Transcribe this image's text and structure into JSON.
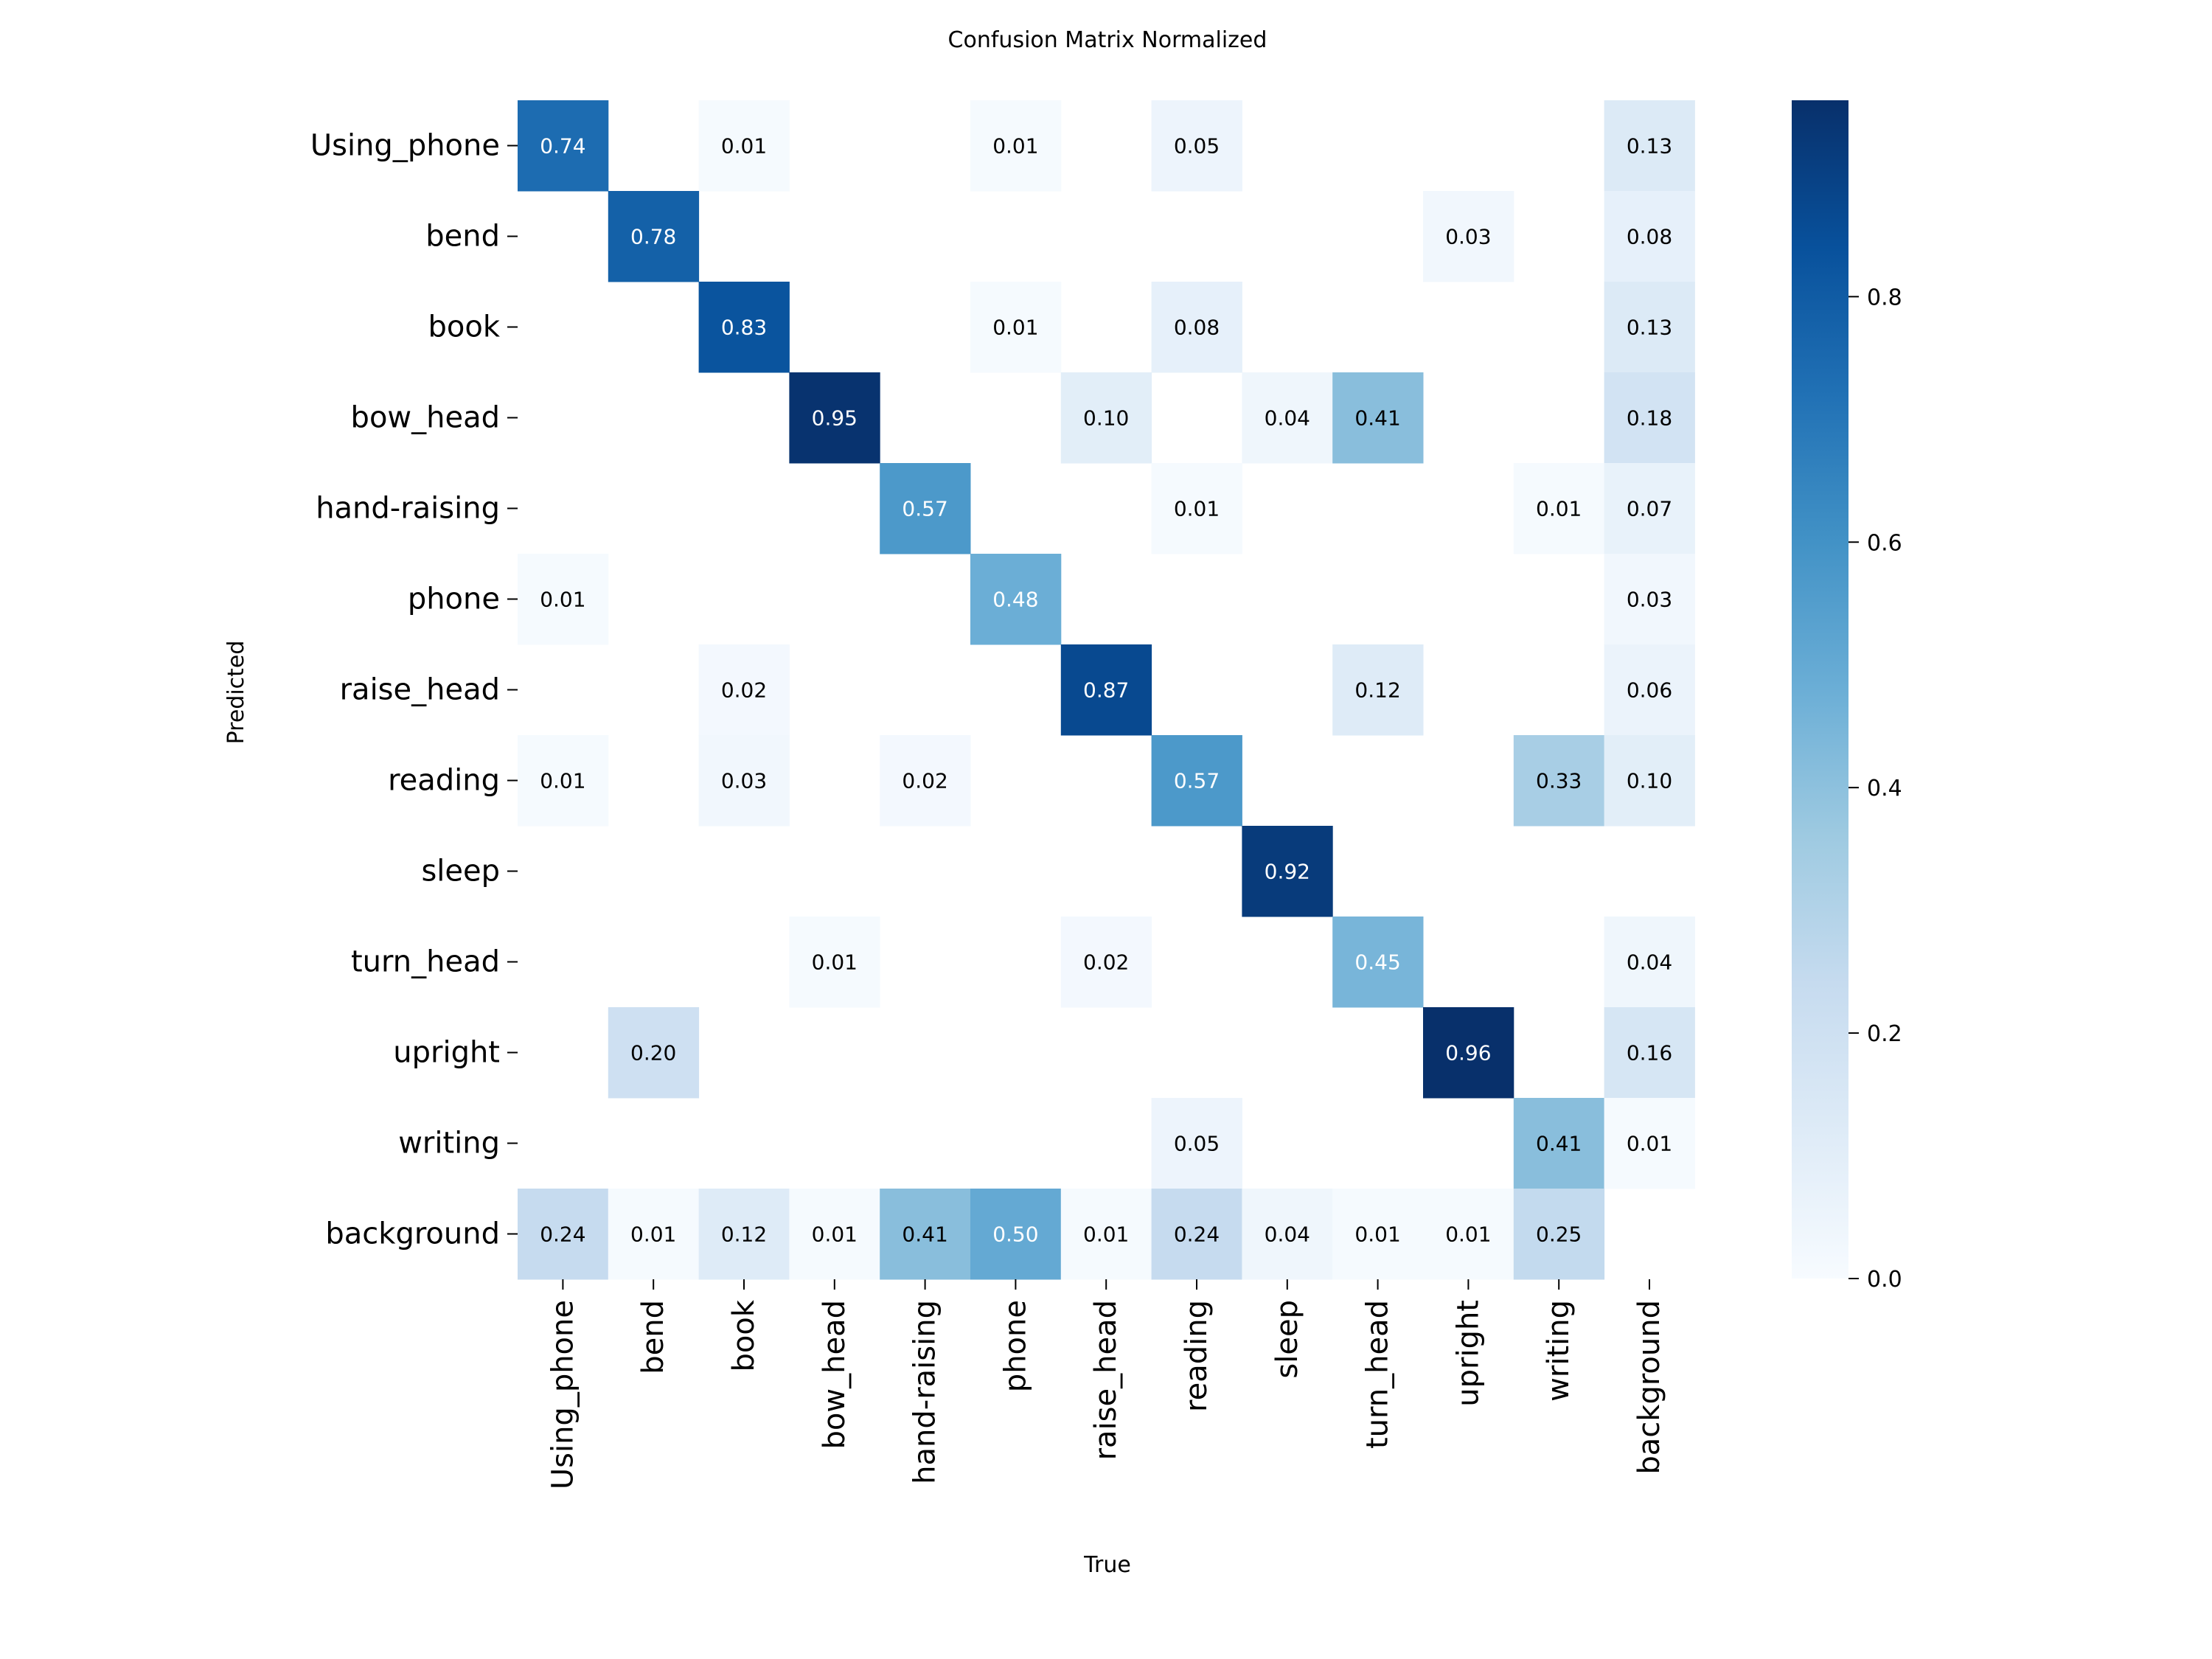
{
  "chart_data": {
    "type": "heatmap",
    "title": "Confusion Matrix Normalized",
    "xlabel": "True",
    "ylabel": "Predicted",
    "x_categories": [
      "Using_phone",
      "bend",
      "book",
      "bow_head",
      "hand-raising",
      "phone",
      "raise_head",
      "reading",
      "sleep",
      "turn_head",
      "upright",
      "writing",
      "background"
    ],
    "y_categories": [
      "Using_phone",
      "bend",
      "book",
      "bow_head",
      "hand-raising",
      "phone",
      "raise_head",
      "reading",
      "sleep",
      "turn_head",
      "upright",
      "writing",
      "background"
    ],
    "values": [
      [
        0.74,
        0,
        0.01,
        0,
        0,
        0.01,
        0,
        0.05,
        0,
        0,
        0,
        0,
        0.13
      ],
      [
        0,
        0.78,
        0,
        0,
        0,
        0,
        0,
        0,
        0,
        0,
        0.03,
        0,
        0.08
      ],
      [
        0,
        0,
        0.83,
        0,
        0,
        0.01,
        0,
        0.08,
        0,
        0,
        0,
        0,
        0.13
      ],
      [
        0,
        0,
        0,
        0.95,
        0,
        0,
        0.1,
        0,
        0.04,
        0.41,
        0,
        0,
        0.18
      ],
      [
        0,
        0,
        0,
        0,
        0.57,
        0,
        0,
        0.01,
        0,
        0,
        0,
        0.01,
        0.07
      ],
      [
        0.01,
        0,
        0,
        0,
        0,
        0.48,
        0,
        0,
        0,
        0,
        0,
        0,
        0.03
      ],
      [
        0,
        0,
        0.02,
        0,
        0,
        0,
        0.87,
        0,
        0,
        0.12,
        0,
        0,
        0.06
      ],
      [
        0.01,
        0,
        0.03,
        0,
        0.02,
        0,
        0,
        0.57,
        0,
        0,
        0,
        0.33,
        0.1
      ],
      [
        0,
        0,
        0,
        0,
        0,
        0,
        0,
        0,
        0.92,
        0,
        0,
        0,
        0
      ],
      [
        0,
        0,
        0,
        0.01,
        0,
        0,
        0.02,
        0,
        0,
        0.45,
        0,
        0,
        0.04
      ],
      [
        0,
        0.2,
        0,
        0,
        0,
        0,
        0,
        0,
        0,
        0,
        0.96,
        0,
        0.16
      ],
      [
        0,
        0,
        0,
        0,
        0,
        0,
        0,
        0.05,
        0,
        0,
        0,
        0.41,
        0.01
      ],
      [
        0.24,
        0.01,
        0.12,
        0.01,
        0.41,
        0.5,
        0.01,
        0.24,
        0.04,
        0.01,
        0.01,
        0.25,
        0
      ]
    ],
    "colormap": "Blues",
    "vmin": 0,
    "vmax": 0.96,
    "colorbar_ticks": [
      0.0,
      0.2,
      0.4,
      0.6,
      0.8
    ],
    "colorbar_tick_labels": [
      "0.0",
      "0.2",
      "0.4",
      "0.6",
      "0.8"
    ],
    "grid": false,
    "legend": "colorbar-right"
  }
}
